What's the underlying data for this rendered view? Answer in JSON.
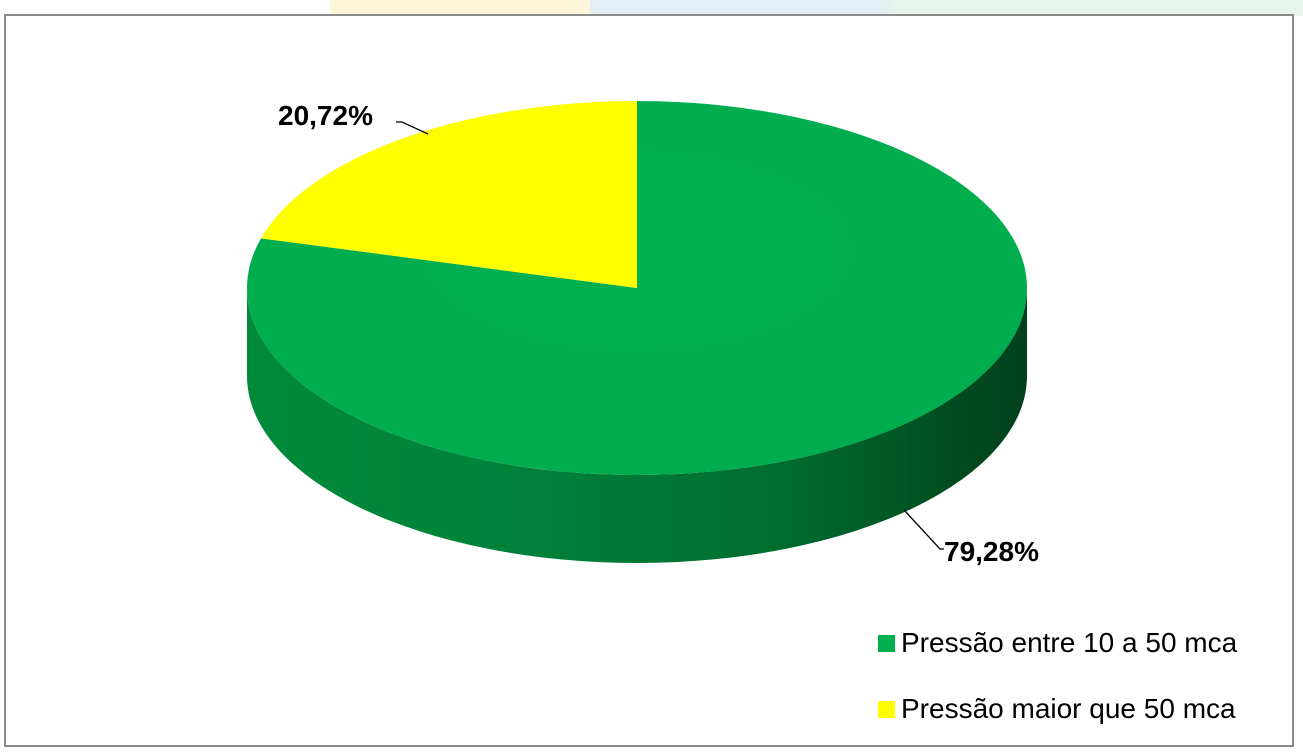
{
  "chart_data": {
    "type": "pie",
    "style": "3d",
    "slices": [
      {
        "name": "Pressão entre 10 a 50 mca",
        "value": 79.28,
        "label": "79,28%",
        "color": "#00b050"
      },
      {
        "name": "Pressão maior que 50 mca",
        "value": 20.72,
        "label": "20,72%",
        "color": "#ffff00"
      }
    ],
    "legend_position": "bottom-right"
  },
  "legend": {
    "items": [
      {
        "label": "Pressão entre 10 a 50 mca",
        "color": "#00b050"
      },
      {
        "label": "Pressão maior que 50 mca",
        "color": "#ffff00"
      }
    ]
  }
}
